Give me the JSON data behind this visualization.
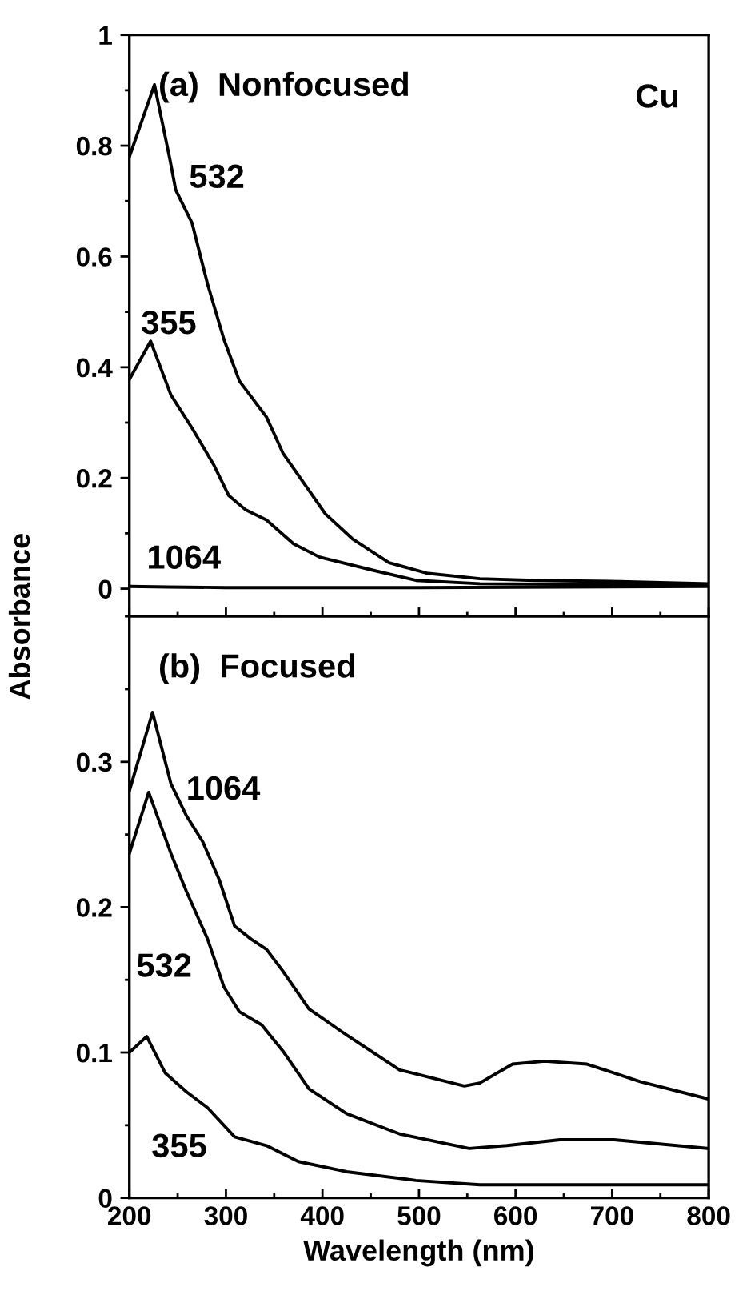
{
  "chart_data": [
    {
      "type": "line",
      "ylabel": "Absorbance",
      "xlim": [
        200,
        800
      ],
      "ylim": [
        -0.05,
        1
      ],
      "xticks": [
        {
          "value": 200,
          "label": null
        },
        {
          "value": 300,
          "label": null
        },
        {
          "value": 400,
          "label": null
        },
        {
          "value": 500,
          "label": null
        },
        {
          "value": 600,
          "label": null
        },
        {
          "value": 700,
          "label": null
        },
        {
          "value": 800,
          "label": null
        }
      ],
      "yticks": [
        0,
        0.2,
        0.4,
        0.6,
        0.8,
        1
      ],
      "tick_labels": "y",
      "grid": false,
      "legend": false,
      "marker": "none",
      "line_style": "solid",
      "annotations": [
        "(a)  Nonfocused",
        "Cu",
        "532",
        "355",
        "1064"
      ],
      "series": [
        {
          "color": "#000000",
          "x": [
            200,
            226,
            242,
            248,
            265,
            281,
            298,
            314,
            342,
            359,
            381,
            403,
            431,
            469,
            508,
            563,
            619,
            708,
            800
          ],
          "values": [
            0.78,
            0.91,
            0.775,
            0.72,
            0.66,
            0.55,
            0.45,
            0.375,
            0.31,
            0.245,
            0.19,
            0.135,
            0.09,
            0.047,
            0.028,
            0.018,
            0.015,
            0.013,
            0.009
          ]
        },
        {
          "color": "#000000",
          "x": [
            200,
            222,
            243,
            265,
            287,
            303,
            320,
            342,
            370,
            397,
            453,
            497,
            563,
            800
          ],
          "values": [
            0.378,
            0.447,
            0.35,
            0.29,
            0.225,
            0.168,
            0.143,
            0.124,
            0.081,
            0.057,
            0.033,
            0.015,
            0.009,
            0.006
          ]
        },
        {
          "color": "#000000",
          "x": [
            200,
            240,
            300,
            500,
            800
          ],
          "values": [
            0.004,
            0.003,
            0.002,
            0.002,
            0.004
          ]
        }
      ]
    },
    {
      "type": "line",
      "xlabel": "Wavelength (nm)",
      "xlim": [
        200,
        800
      ],
      "ylim": [
        0,
        0.4
      ],
      "xticks": [
        200,
        300,
        400,
        500,
        600,
        700,
        800
      ],
      "yticks": [
        0,
        0.1,
        0.2,
        0.3
      ],
      "grid": false,
      "legend": false,
      "marker": "none",
      "line_style": "solid",
      "annotations": [
        "(b)  Focused",
        "1064",
        "532",
        "355"
      ],
      "series": [
        {
          "color": "#000000",
          "x": [
            200,
            224,
            243,
            259,
            276,
            293,
            309,
            326,
            342,
            359,
            386,
            425,
            480,
            547,
            563,
            597,
            630,
            674,
            729,
            800
          ],
          "values": [
            0.28,
            0.334,
            0.285,
            0.263,
            0.245,
            0.219,
            0.187,
            0.178,
            0.171,
            0.156,
            0.13,
            0.112,
            0.088,
            0.077,
            0.079,
            0.092,
            0.094,
            0.092,
            0.08,
            0.068
          ]
        },
        {
          "color": "#000000",
          "x": [
            200,
            220,
            243,
            259,
            281,
            298,
            314,
            337,
            359,
            386,
            425,
            480,
            552,
            591,
            646,
            702,
            800
          ],
          "values": [
            0.237,
            0.279,
            0.237,
            0.211,
            0.178,
            0.145,
            0.128,
            0.119,
            0.101,
            0.075,
            0.058,
            0.044,
            0.034,
            0.036,
            0.04,
            0.04,
            0.034
          ]
        },
        {
          "color": "#000000",
          "x": [
            200,
            218,
            237,
            259,
            281,
            309,
            342,
            375,
            425,
            497,
            563,
            800
          ],
          "values": [
            0.1,
            0.111,
            0.086,
            0.073,
            0.062,
            0.042,
            0.036,
            0.025,
            0.018,
            0.012,
            0.009,
            0.009
          ]
        }
      ]
    }
  ]
}
